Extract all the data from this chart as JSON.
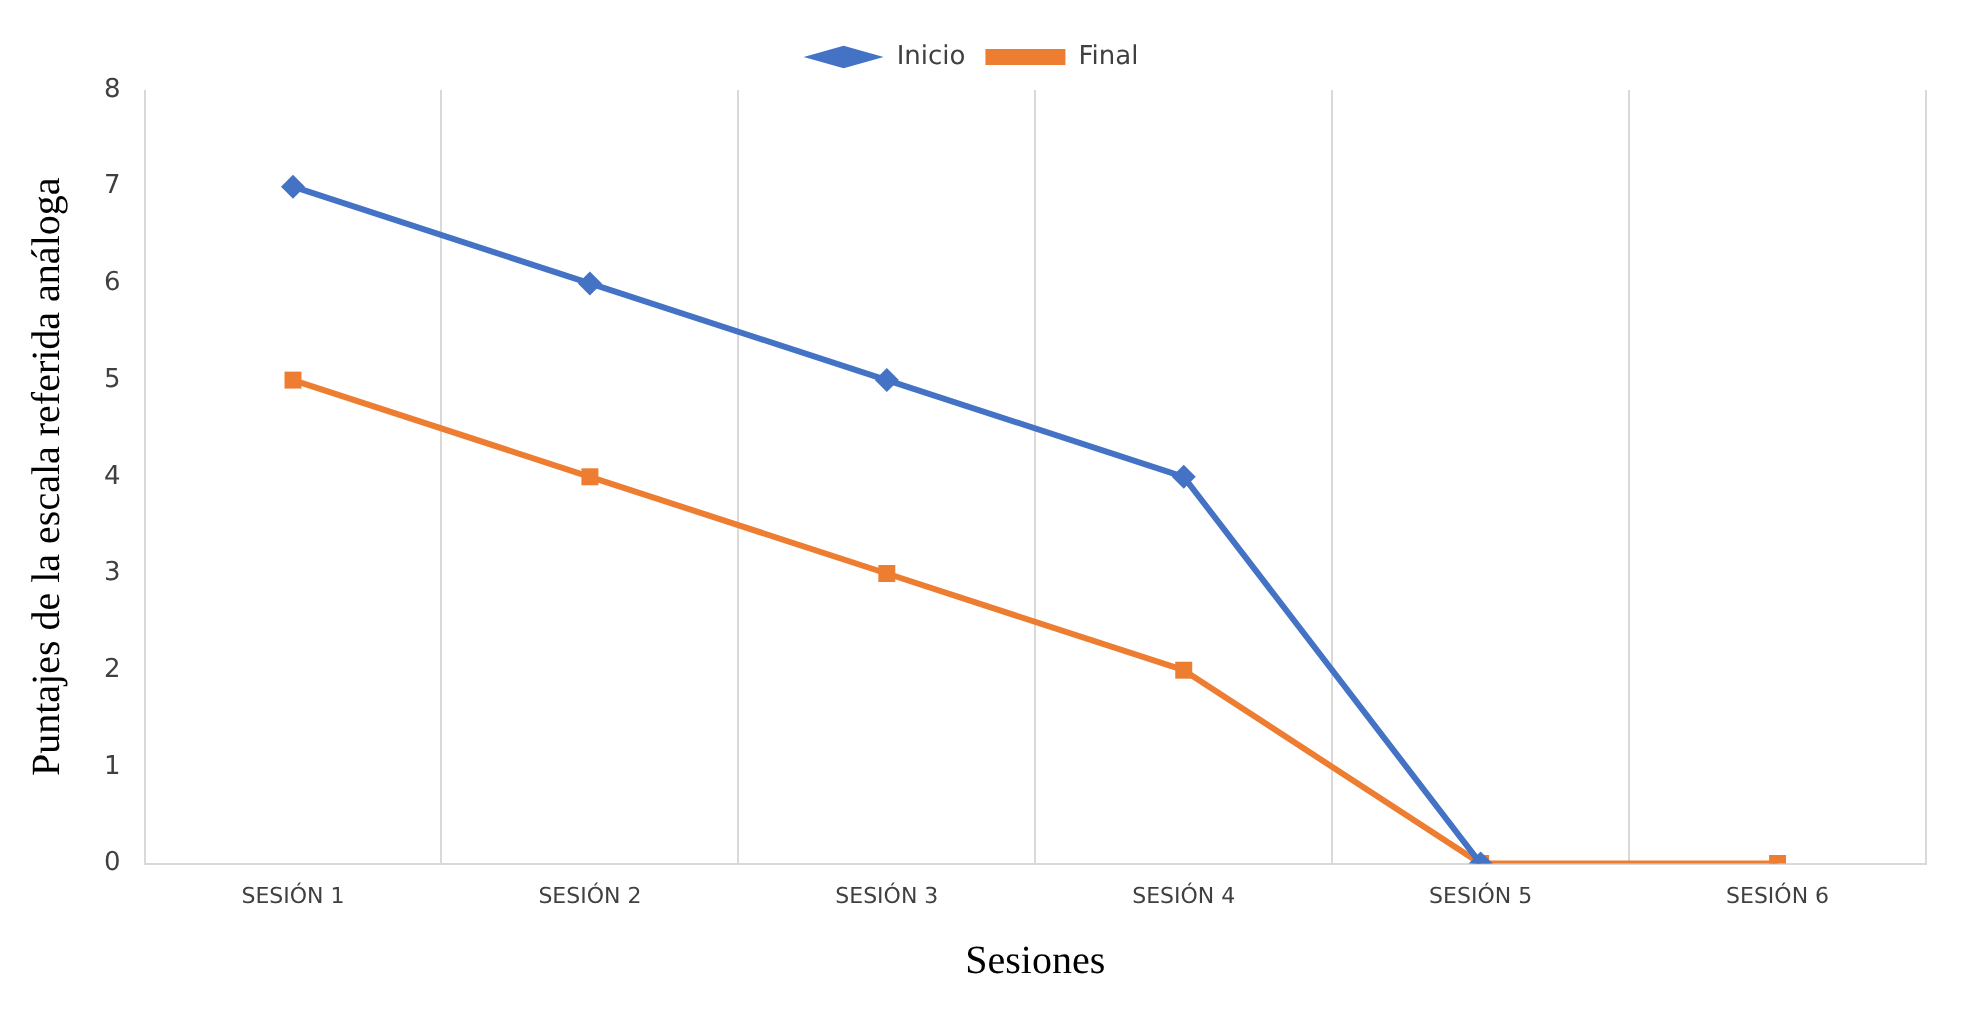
{
  "chart_data": {
    "type": "line",
    "xlabel": "Sesiones",
    "ylabel": "Puntajes de la escala referida análoga",
    "categories": [
      "SESIÓN 1",
      "SESIÓN 2",
      "SESIÓN 3",
      "SESIÓN 4",
      "SESIÓN 5",
      "SESIÓN 6"
    ],
    "series": [
      {
        "name": "Inicio",
        "color": "#4472c4",
        "marker": "diamond",
        "values": [
          7,
          6,
          5,
          4,
          0,
          null
        ]
      },
      {
        "name": "Final",
        "color": "#ed7d31",
        "marker": "square",
        "values": [
          5,
          4,
          3,
          2,
          0,
          0
        ]
      }
    ],
    "ylim": [
      0,
      8
    ],
    "yticks": [
      0,
      1,
      2,
      3,
      4,
      5,
      6,
      7,
      8
    ],
    "grid": "x",
    "legend": "top",
    "line_style": "solid"
  }
}
